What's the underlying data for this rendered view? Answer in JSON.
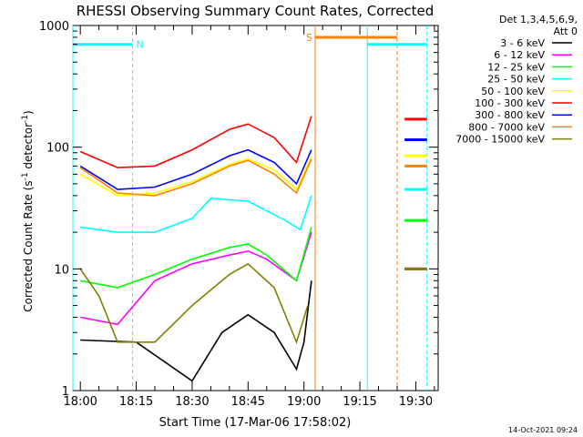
{
  "chart_data": {
    "type": "line",
    "title": "RHESSI Observing Summary Count Rates, Corrected",
    "xlabel": "Start Time (17-Mar-06 17:58:02)",
    "ylabel": "Corrected Count Rate (s",
    "ylabel_exp1": "-1",
    "ylabel_mid": " detector",
    "ylabel_exp2": "-1",
    "ylabel_end": ")",
    "yscale": "log",
    "xlim": [
      "17:58",
      "19:36"
    ],
    "ylim": [
      1,
      1000
    ],
    "x_ticks": [
      "18:00",
      "18:15",
      "18:30",
      "18:45",
      "19:00",
      "19:15",
      "19:30"
    ],
    "y_ticks": [
      "1",
      "10",
      "100",
      "1000"
    ],
    "timestamp": "14-Oct-2021 09:24",
    "legend_header": [
      "Det 1,3,4,5,6,9,",
      "Att 0"
    ],
    "legend_placement": "top-right",
    "series": [
      {
        "name": "3 - 6 keV",
        "color": "#000000",
        "x": [
          "18:00",
          "18:15",
          "18:30",
          "18:38",
          "18:45",
          "18:52",
          "18:58",
          "19:00",
          "19:02"
        ],
        "values": [
          2.6,
          2.5,
          1.2,
          3.0,
          4.2,
          3.0,
          1.5,
          2.5,
          8
        ]
      },
      {
        "name": "6 - 12 keV",
        "color": "#ff00ff",
        "x": [
          "18:00",
          "18:10",
          "18:20",
          "18:30",
          "18:40",
          "18:45",
          "18:50",
          "18:58",
          "19:02"
        ],
        "values": [
          4,
          3.5,
          8,
          11,
          13,
          14,
          12,
          8,
          20
        ]
      },
      {
        "name": "12 - 25 keV",
        "color": "#00ff00",
        "x": [
          "18:00",
          "18:10",
          "18:20",
          "18:30",
          "18:40",
          "18:45",
          "18:50",
          "18:58",
          "19:02"
        ],
        "values": [
          8,
          7,
          9,
          12,
          15,
          16,
          13,
          8,
          22
        ]
      },
      {
        "name": "25 - 50 keV",
        "color": "#00ffff",
        "x": [
          "18:00",
          "18:10",
          "18:20",
          "18:30",
          "18:35",
          "18:45",
          "18:55",
          "18:59",
          "19:02"
        ],
        "values": [
          22,
          20,
          20,
          26,
          38,
          36,
          25,
          21,
          40
        ]
      },
      {
        "name": "50 - 100 keV",
        "color": "#ffff00",
        "x": [
          "18:00",
          "18:10",
          "18:20",
          "18:30",
          "18:40",
          "18:45",
          "18:52",
          "18:58",
          "19:02"
        ],
        "values": [
          60,
          40,
          42,
          52,
          72,
          80,
          65,
          45,
          85
        ]
      },
      {
        "name": "100 - 300 keV",
        "color": "#ff0000",
        "x": [
          "18:00",
          "18:10",
          "18:20",
          "18:30",
          "18:40",
          "18:45",
          "18:52",
          "18:58",
          "19:02"
        ],
        "values": [
          92,
          68,
          70,
          95,
          140,
          155,
          120,
          75,
          180
        ]
      },
      {
        "name": "300 - 800 keV",
        "color": "#0000ff",
        "x": [
          "18:00",
          "18:10",
          "18:20",
          "18:30",
          "18:40",
          "18:45",
          "18:52",
          "18:58",
          "19:02"
        ],
        "values": [
          70,
          45,
          47,
          60,
          85,
          95,
          75,
          50,
          95
        ]
      },
      {
        "name": "800 - 7000 keV",
        "color": "#ff8000",
        "x": [
          "18:00",
          "18:10",
          "18:20",
          "18:30",
          "18:40",
          "18:45",
          "18:52",
          "18:58",
          "19:02"
        ],
        "values": [
          68,
          42,
          40,
          50,
          70,
          78,
          60,
          42,
          80
        ]
      },
      {
        "name": "7000 - 15000 keV",
        "color": "#808000",
        "x": [
          "18:00",
          "18:05",
          "18:10",
          "18:20",
          "18:30",
          "18:40",
          "18:45",
          "18:52",
          "18:58",
          "19:01"
        ],
        "values": [
          10,
          6,
          2.5,
          2.5,
          5,
          9,
          11,
          7,
          2.5,
          5
        ]
      }
    ],
    "right_segment": {
      "x": [
        "19:27",
        "19:33"
      ],
      "values_by_series": {
        "100 - 300 keV": 170,
        "300 - 800 keV": 115,
        "50 - 100 keV": 85,
        "800 - 7000 keV": 70,
        "25 - 50 keV": 45,
        "12 - 25 keV": 25,
        "7000 - 15000 keV": 10,
        "6 - 12 keV": 10
      }
    },
    "annotations": [
      {
        "label": "N",
        "color": "#00ffff",
        "x_range": [
          "17:58",
          "18:14"
        ],
        "y": 700
      },
      {
        "label": "S",
        "color": "#ff8000",
        "x_range": [
          "19:03",
          "19:25"
        ],
        "y": 800
      },
      {
        "label": "",
        "color": "#00ffff",
        "x_range": [
          "19:17",
          "19:33"
        ],
        "y": 700
      }
    ],
    "vertical_markers": [
      {
        "x": "17:58",
        "color": "#00ffff",
        "style": "solid"
      },
      {
        "x": "18:14",
        "color": "#00ffff",
        "style": "dashed"
      },
      {
        "x": "19:03",
        "color": "#ff8000",
        "style": "solid"
      },
      {
        "x": "19:17",
        "color": "#00ffff",
        "style": "solid"
      },
      {
        "x": "19:25",
        "color": "#ff8000",
        "style": "dashed"
      },
      {
        "x": "19:33",
        "color": "#00ffff",
        "style": "dashed"
      }
    ]
  }
}
